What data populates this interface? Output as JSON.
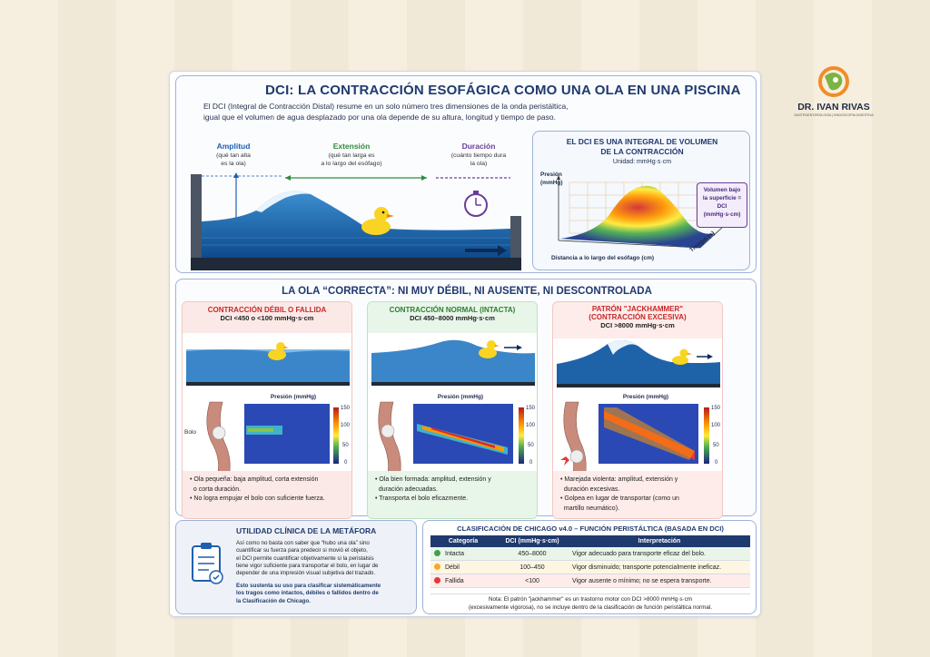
{
  "brand": {
    "name": "DR. IVAN RIVAS",
    "tagline": "GASTROENTEROLOGÍA | ENDOSCOPIA DIGESTIVA"
  },
  "header": {
    "title": "DCI: LA CONTRACCIÓN ESOFÁGICA COMO UNA OLA EN UNA PISCINA",
    "intro_line1": "El DCI (Integral de Contracción Distal) resume en un solo número tres dimensiones de la onda peristáltica,",
    "intro_line2": "igual que el volumen de agua desplazado por una ola depende de su altura, longitud y tiempo de paso."
  },
  "dimensions": [
    {
      "label": "Amplitud",
      "desc1": "(qué tan alta",
      "desc2": "es la ola)",
      "color": "#1f5fae"
    },
    {
      "label": "Extensión",
      "desc1": "(qué tan larga es",
      "desc2": "a lo largo del esófago)",
      "color": "#2e8b3a"
    },
    {
      "label": "Duración",
      "desc1": "(cuánto tiempo dura",
      "desc2": "la ola)",
      "color": "#6a3d9a"
    }
  ],
  "integral_panel": {
    "title1": "EL DCI ES UNA INTEGRAL DE VOLUMEN",
    "title2": "DE LA CONTRACCIÓN",
    "unit": "Unidad: mmHg·s·cm",
    "axis_pressure": "Presión",
    "axis_pressure_unit": "(mmHg)",
    "axis_distance": "Distancia a lo largo del esófago (cm)",
    "axis_time": "Tiempo (s)",
    "callout1": "Volumen bajo",
    "callout2": "la superficie =",
    "callout3": "DCI",
    "callout4": "(mmHg·s·cm)"
  },
  "wave_section": {
    "title": "LA OLA “CORRECTA”: NI MUY DÉBIL, NI AUSENTE, NI DESCONTROLADA",
    "heatmap_title": "Presión (mmHg)",
    "colorbar_ticks": [
      "150",
      "100",
      "50",
      "0"
    ],
    "bolus_label": "Bolo",
    "cards": [
      {
        "title": "CONTRACCIÓN DÉBIL O FALLIDA",
        "subtitle": "DCI <450 o <100 mmHg·s·cm",
        "title_color": "#c62828",
        "bg": "#fbe9e7",
        "bullets": [
          "Ola pequeña: baja amplitud, corta extensión",
          "o corta duración.",
          "No logra empujar el bolo con suficiente fuerza."
        ]
      },
      {
        "title": "CONTRACCIÓN NORMAL (INTACTA)",
        "subtitle": "DCI 450–8000 mmHg·s·cm",
        "title_color": "#2e7d32",
        "bg": "#e8f5e9",
        "bullets": [
          "Ola bien formada: amplitud, extensión y",
          "duración adecuadas.",
          "Transporta el bolo eficazmente."
        ]
      },
      {
        "title": "PATRÓN \"JACKHAMMER\"",
        "title2": "(CONTRACCIÓN EXCESIVA)",
        "subtitle": "DCI >8000 mmHg·s·cm",
        "title_color": "#c62828",
        "bg": "#fdecea",
        "bullets": [
          "Marejada violenta: amplitud, extensión y",
          "duración excesivas.",
          "Golpea en lugar de transportar (como un",
          "martillo neumático)."
        ]
      }
    ]
  },
  "clinical": {
    "title": "UTILIDAD CLÍNICA DE LA METÁFORA",
    "p1": [
      "Así como no basta con saber que “hubo una ola” sino",
      "cuantificar su fuerza para predecir si movió el objeto,",
      "el DCI permite cuantificar objetivamente si la peristalsis",
      "tiene vigor suficiente para transportar el bolo, en lugar de",
      "depender de una impresión visual subjetiva del trazado."
    ],
    "p2": [
      "Esto sustenta su uso para clasificar sistemáticamente",
      "los tragos como intactos, débiles o fallidos dentro de",
      "la Clasificación de Chicago."
    ]
  },
  "chicago": {
    "title": "CLASIFICACIÓN DE CHICAGO v4.0 – FUNCIÓN PERISTÁLTICA (BASADA EN DCI)",
    "headers": [
      "Categoría",
      "DCI (mmHg·s·cm)",
      "Interpretación"
    ],
    "rows": [
      {
        "category": "Intacta",
        "dci": "450–8000",
        "interp": "Vigor adecuado para transporte eficaz del bolo.",
        "color": "#43a047"
      },
      {
        "category": "Débil",
        "dci": "100–450",
        "interp": "Vigor disminuido; transporte potencialmente ineficaz.",
        "color": "#f9a825"
      },
      {
        "category": "Fallida",
        "dci": "<100",
        "interp": "Vigor ausente o mínimo; no se espera transporte.",
        "color": "#e53935"
      }
    ],
    "note1": "Nota: El patrón \"jackhammer\" es un trastorno motor con DCI >8000 mmHg·s·cm",
    "note2": "(excesivamente vigorosa), no se incluye dentro de la clasificación de función peristáltica normal."
  }
}
